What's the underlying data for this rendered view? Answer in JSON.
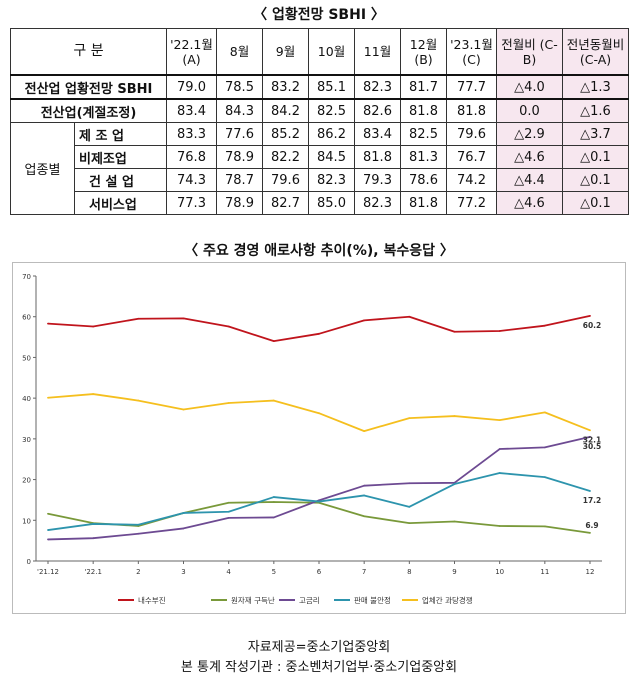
{
  "table_title": "〈 업황전망 SBHI 〉",
  "chart_title": "〈 주요 경영 애로사항 추이(%), 복수응답 〉",
  "table": {
    "corner": "구   분",
    "columns": [
      "'22.1월 (A)",
      "8월",
      "9월",
      "10월",
      "11월",
      "12월 (B)",
      "'23.1월 (C)",
      "전월비 (C-B)",
      "전년동월비 (C-A)"
    ],
    "group_label": "업종별",
    "rows": [
      {
        "label": "전산업 업황전망 SBHI",
        "values": [
          "79.0",
          "78.5",
          "83.2",
          "85.1",
          "82.3",
          "81.7",
          "77.7",
          "△4.0",
          "△1.3"
        ]
      },
      {
        "label": "전산업(계절조정)",
        "values": [
          "83.4",
          "84.3",
          "84.2",
          "82.5",
          "82.6",
          "81.8",
          "81.8",
          "0.0",
          "△1.6"
        ]
      },
      {
        "label": "제 조 업",
        "values": [
          "83.3",
          "77.6",
          "85.2",
          "86.2",
          "83.4",
          "82.5",
          "79.6",
          "△2.9",
          "△3.7"
        ]
      },
      {
        "label": "비제조업",
        "values": [
          "76.8",
          "78.9",
          "82.2",
          "84.5",
          "81.8",
          "81.3",
          "76.7",
          "△4.6",
          "△0.1"
        ]
      },
      {
        "label": "건 설 업",
        "values": [
          "74.3",
          "78.7",
          "79.6",
          "82.3",
          "79.3",
          "78.6",
          "74.2",
          "△4.4",
          "△0.1"
        ]
      },
      {
        "label": "서비스업",
        "values": [
          "77.3",
          "78.9",
          "82.7",
          "85.0",
          "82.3",
          "81.8",
          "77.2",
          "△4.6",
          "△0.1"
        ]
      }
    ]
  },
  "chart_data": {
    "type": "line",
    "title": "〈 주요 경영 애로사항 추이(%), 복수응답 〉",
    "categories": [
      "'21.12",
      "'22.1",
      "2",
      "3",
      "4",
      "5",
      "6",
      "7",
      "8",
      "9",
      "10",
      "11",
      "12"
    ],
    "ylim": [
      0,
      70
    ],
    "yticks": [
      "0",
      "10",
      "20",
      "30",
      "40",
      "50",
      "60",
      "70"
    ],
    "grid": false,
    "legend": "bottom",
    "series": [
      {
        "name": "내수부진",
        "color": "#c0141c",
        "values": [
          58.3,
          57.6,
          59.5,
          59.6,
          57.6,
          54.0,
          55.8,
          59.1,
          60.0,
          56.3,
          56.5,
          57.8,
          60.2
        ],
        "end_label": "60.2"
      },
      {
        "name": "원자재 구득난",
        "color": "#79993a",
        "values": [
          11.6,
          9.3,
          8.6,
          11.8,
          14.3,
          14.5,
          14.3,
          11.0,
          9.3,
          9.7,
          8.6,
          8.5,
          6.9
        ],
        "end_label": "6.9"
      },
      {
        "name": "고금리",
        "color": "#6d4a92",
        "values": [
          5.3,
          5.6,
          6.7,
          8.0,
          10.6,
          10.7,
          14.9,
          18.5,
          19.1,
          19.2,
          27.5,
          27.9,
          30.5
        ],
        "end_label": "30.5"
      },
      {
        "name": "판매 불안정",
        "color": "#2d94ad",
        "values": [
          7.6,
          9.1,
          8.9,
          11.8,
          12.1,
          15.7,
          14.6,
          16.1,
          13.3,
          18.9,
          21.6,
          20.6,
          17.2
        ],
        "end_label": "17.2"
      },
      {
        "name": "업체간 과당경쟁",
        "color": "#f5bf1e",
        "values": [
          40.1,
          41.0,
          39.4,
          37.2,
          38.8,
          39.4,
          36.3,
          31.9,
          35.1,
          35.6,
          34.6,
          36.5,
          32.1
        ],
        "end_label": "32.1"
      }
    ]
  },
  "sources": [
    "자료제공=중소기업중앙회",
    "본 통계 작성기관 : 중소벤처기업부·중소기업중앙회"
  ]
}
